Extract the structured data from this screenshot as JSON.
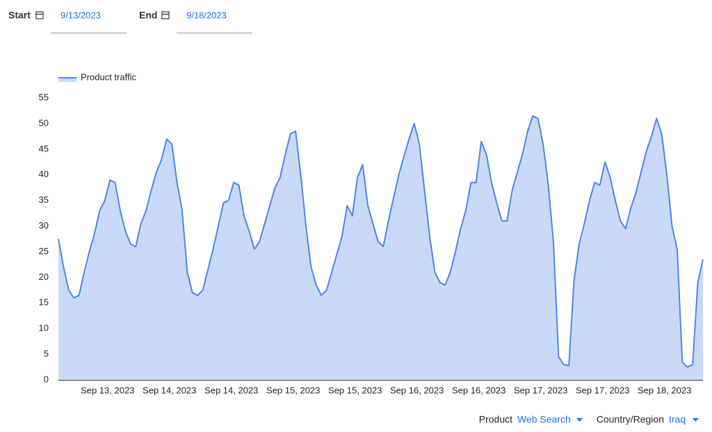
{
  "filters": {
    "start_label": "Start",
    "start_value": "9/13/2023",
    "end_label": "End",
    "end_value": "9/18/2023"
  },
  "chart_data": {
    "type": "area",
    "categories": [
      null,
      null,
      null,
      null,
      null,
      null,
      null,
      null,
      null,
      "Sep 13, 2023",
      null,
      null,
      null,
      null,
      null,
      null,
      null,
      null,
      null,
      null,
      null,
      "Sep 14, 2023",
      null,
      null,
      null,
      null,
      null,
      null,
      null,
      null,
      null,
      null,
      null,
      "Sep 14, 2023",
      null,
      null,
      null,
      null,
      null,
      null,
      null,
      null,
      null,
      null,
      null,
      "Sep 15, 2023",
      null,
      null,
      null,
      null,
      null,
      null,
      null,
      null,
      null,
      null,
      null,
      "Sep 15, 2023",
      null,
      null,
      null,
      null,
      null,
      null,
      null,
      null,
      null,
      null,
      null,
      "Sep 16, 2023",
      null,
      null,
      null,
      null,
      null,
      null,
      null,
      null,
      null,
      null,
      null,
      "Sep 16, 2023",
      null,
      null,
      null,
      null,
      null,
      null,
      null,
      null,
      null,
      null,
      null,
      "Sep 17, 2023",
      null,
      null,
      null,
      null,
      null,
      null,
      null,
      null,
      null,
      null,
      null,
      "Sep 17, 2023",
      null,
      null,
      null,
      null,
      null,
      null,
      null,
      null,
      null,
      null,
      null,
      "Sep 18, 2023",
      null,
      null,
      null,
      null,
      null,
      null,
      null,
      null
    ],
    "series": [
      {
        "name": "Product traffic",
        "color": "#4a86e8",
        "fill": "#c9daf8",
        "values": [
          27.5,
          22,
          17.5,
          16,
          16.5,
          21,
          25,
          28.5,
          33,
          35,
          39,
          38.5,
          33,
          29,
          26.5,
          26,
          30.5,
          33,
          37,
          40.5,
          43,
          47,
          46,
          38.5,
          33,
          21,
          17,
          16.5,
          17.5,
          21.5,
          25.5,
          30,
          34.5,
          35,
          38.5,
          38,
          32,
          29,
          25.5,
          27,
          30.5,
          34,
          37.5,
          39.5,
          44,
          48,
          48.5,
          40,
          30,
          22,
          18.5,
          16.5,
          17.5,
          21,
          24.5,
          28,
          34,
          32,
          39.5,
          42,
          34,
          30.5,
          27,
          26,
          31,
          35.5,
          40,
          43.5,
          47,
          50,
          46,
          37,
          28,
          21,
          19,
          18.5,
          21,
          25,
          29.5,
          33,
          38.5,
          38.5,
          46.5,
          44,
          38.5,
          34.5,
          31,
          31,
          37,
          40.5,
          44,
          48.5,
          51.5,
          51,
          46,
          38,
          27,
          4.5,
          3,
          2.8,
          19.5,
          26.5,
          30.5,
          35,
          38.5,
          38,
          42.5,
          39.5,
          35,
          31,
          29.5,
          33.5,
          36.5,
          40.5,
          44.5,
          47.5,
          51,
          48,
          40,
          30,
          25.5,
          3.5,
          2.5,
          3,
          19,
          23.5
        ]
      }
    ],
    "ylim": [
      0,
      55
    ],
    "yticks": [
      0,
      5,
      10,
      15,
      20,
      25,
      30,
      35,
      40,
      45,
      50,
      55
    ],
    "grid": false
  },
  "footer": {
    "product_label": "Product",
    "product_value": "Web Search",
    "region_label": "Country/Region",
    "region_value": "Iraq"
  }
}
